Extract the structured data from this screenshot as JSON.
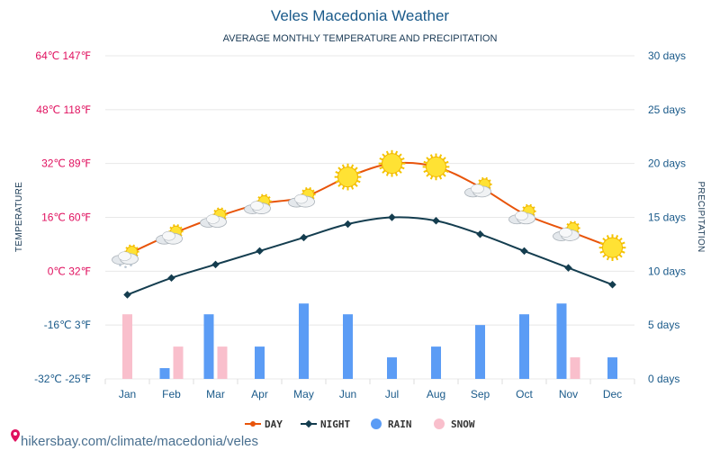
{
  "chart_data": {
    "type": "line",
    "title": "Veles Macedonia Weather",
    "subtitle": "AVERAGE MONTHLY TEMPERATURE AND PRECIPITATION",
    "ylabel_left": "TEMPERATURE",
    "ylabel_right": "PRECIPITATION",
    "categories": [
      "Jan",
      "Feb",
      "Mar",
      "Apr",
      "May",
      "Jun",
      "Jul",
      "Aug",
      "Sep",
      "Oct",
      "Nov",
      "Dec"
    ],
    "ylim_left": [
      -32,
      64
    ],
    "ylim_right": [
      0,
      30
    ],
    "left_ticks": [
      "64℃ 147℉",
      "48℃ 118℉",
      "32℃ 89℉",
      "16℃ 60℉",
      "0℃ 32℉",
      "-16℃ 3℉",
      "-32℃ -25℉"
    ],
    "right_ticks": [
      "30 days",
      "25 days",
      "20 days",
      "15 days",
      "10 days",
      "5 days",
      "0 days"
    ],
    "grid": true,
    "legend_position": "bottom-center",
    "series": [
      {
        "name": "DAY",
        "kind": "line",
        "axis": "left",
        "color": "#e8540a",
        "values": [
          5,
          11,
          16,
          20,
          22,
          28,
          32,
          31,
          25,
          17,
          12,
          7
        ]
      },
      {
        "name": "NIGHT",
        "kind": "line",
        "axis": "left",
        "color": "#143d4f",
        "values": [
          -7,
          -2,
          2,
          6,
          10,
          14,
          16,
          15,
          11,
          6,
          1,
          -4
        ]
      },
      {
        "name": "RAIN",
        "kind": "bar",
        "axis": "right",
        "color": "#5b9cf5",
        "values": [
          0,
          1,
          6,
          3,
          7,
          6,
          2,
          3,
          5,
          6,
          7,
          2
        ]
      },
      {
        "name": "SNOW",
        "kind": "bar",
        "axis": "right",
        "color": "#f9bfcc",
        "values": [
          6,
          3,
          3,
          0,
          0,
          0,
          0,
          0,
          0,
          0,
          2,
          0
        ]
      }
    ],
    "weather_icons": [
      "cloud-sun-snow-icon",
      "cloud-sun-icon",
      "cloud-sun-icon",
      "cloud-sun-icon",
      "cloud-sun-icon",
      "sun-icon",
      "sun-icon",
      "sun-icon",
      "cloud-sun-icon",
      "cloud-sun-icon",
      "cloud-sun-icon",
      "sun-icon"
    ]
  },
  "source": "hikersbay.com/climate/macedonia/veles"
}
